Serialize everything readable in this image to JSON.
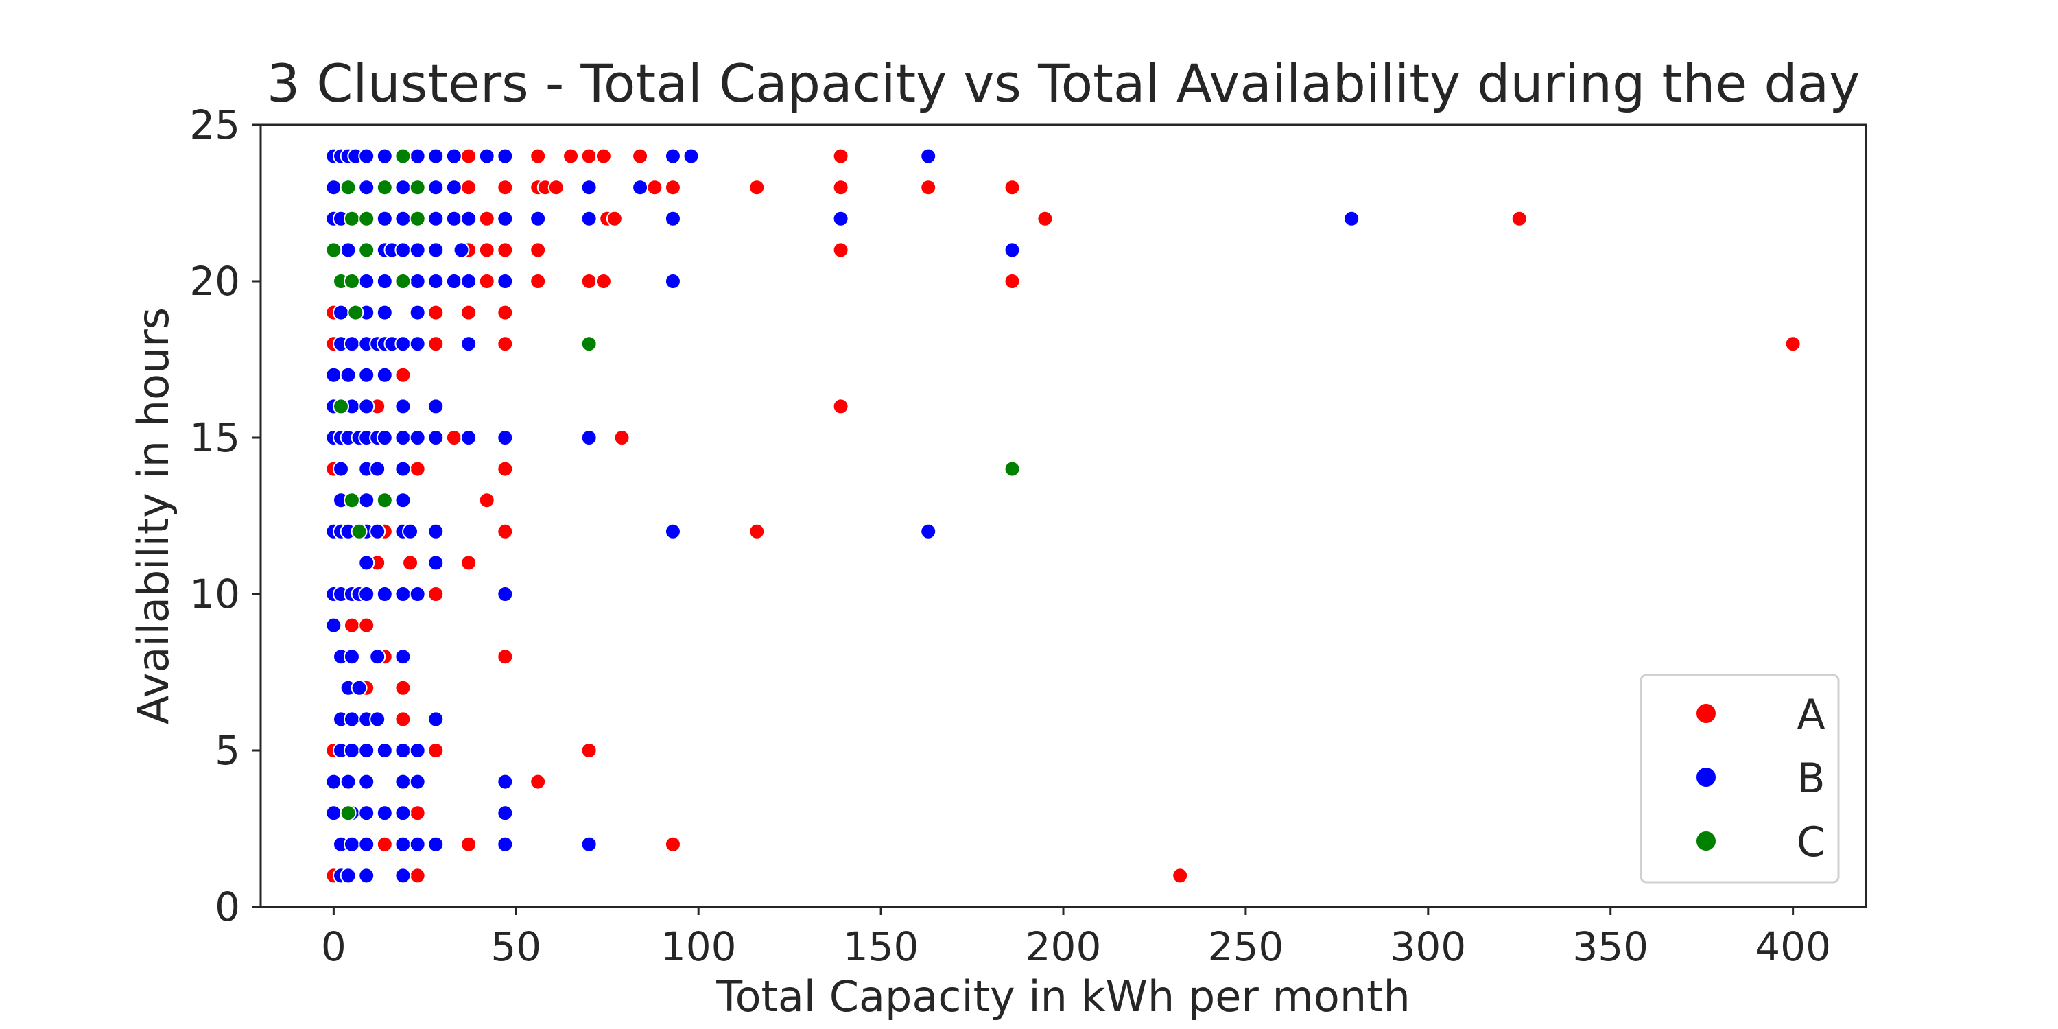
{
  "chart_data": {
    "type": "scatter",
    "title": "3 Clusters - Total Capacity  vs Total Availability during the day",
    "xlabel": "Total Capacity in kWh per month",
    "ylabel": "Availability in hours",
    "xlim": [
      -20,
      420
    ],
    "ylim": [
      0,
      25
    ],
    "xticks": [
      "0",
      "50",
      "100",
      "150",
      "200",
      "250",
      "300",
      "350",
      "400"
    ],
    "yticks": [
      "0",
      "5",
      "10",
      "15",
      "20",
      "25"
    ],
    "grid": false,
    "legend_position": "bottom-right",
    "series": [
      {
        "name": "A",
        "color": "#ff0000",
        "points": [
          [
            37,
            24
          ],
          [
            56,
            24
          ],
          [
            65,
            24
          ],
          [
            70,
            24
          ],
          [
            74,
            24
          ],
          [
            84,
            24
          ],
          [
            139,
            24
          ],
          [
            37,
            23
          ],
          [
            47,
            23
          ],
          [
            56,
            23
          ],
          [
            58,
            23
          ],
          [
            61,
            23
          ],
          [
            88,
            23
          ],
          [
            93,
            23
          ],
          [
            116,
            23
          ],
          [
            139,
            23
          ],
          [
            163,
            23
          ],
          [
            186,
            23
          ],
          [
            42,
            22
          ],
          [
            75,
            22
          ],
          [
            77,
            22
          ],
          [
            195,
            22
          ],
          [
            325,
            22
          ],
          [
            37,
            21
          ],
          [
            42,
            21
          ],
          [
            47,
            21
          ],
          [
            56,
            21
          ],
          [
            139,
            21
          ],
          [
            28,
            20
          ],
          [
            42,
            20
          ],
          [
            56,
            20
          ],
          [
            70,
            20
          ],
          [
            74,
            20
          ],
          [
            186,
            20
          ],
          [
            0,
            19
          ],
          [
            28,
            19
          ],
          [
            37,
            19
          ],
          [
            47,
            19
          ],
          [
            0,
            18
          ],
          [
            28,
            18
          ],
          [
            47,
            18
          ],
          [
            400,
            18
          ],
          [
            19,
            17
          ],
          [
            12,
            16
          ],
          [
            139,
            16
          ],
          [
            33,
            15
          ],
          [
            79,
            15
          ],
          [
            0,
            14
          ],
          [
            23,
            14
          ],
          [
            47,
            14
          ],
          [
            42,
            13
          ],
          [
            14,
            12
          ],
          [
            47,
            12
          ],
          [
            116,
            12
          ],
          [
            12,
            11
          ],
          [
            21,
            11
          ],
          [
            37,
            11
          ],
          [
            28,
            10
          ],
          [
            5,
            9
          ],
          [
            9,
            9
          ],
          [
            14,
            8
          ],
          [
            47,
            8
          ],
          [
            9,
            7
          ],
          [
            19,
            7
          ],
          [
            19,
            6
          ],
          [
            0,
            5
          ],
          [
            28,
            5
          ],
          [
            70,
            5
          ],
          [
            56,
            4
          ],
          [
            23,
            3
          ],
          [
            14,
            2
          ],
          [
            37,
            2
          ],
          [
            93,
            2
          ],
          [
            0,
            1
          ],
          [
            23,
            1
          ],
          [
            232,
            1
          ]
        ]
      },
      {
        "name": "B",
        "color": "#0000ff",
        "points": [
          [
            0,
            24
          ],
          [
            2,
            24
          ],
          [
            4,
            24
          ],
          [
            6,
            24
          ],
          [
            9,
            24
          ],
          [
            14,
            24
          ],
          [
            23,
            24
          ],
          [
            28,
            24
          ],
          [
            33,
            24
          ],
          [
            42,
            24
          ],
          [
            47,
            24
          ],
          [
            93,
            24
          ],
          [
            98,
            24
          ],
          [
            163,
            24
          ],
          [
            0,
            23
          ],
          [
            9,
            23
          ],
          [
            14,
            23
          ],
          [
            19,
            23
          ],
          [
            28,
            23
          ],
          [
            33,
            23
          ],
          [
            70,
            23
          ],
          [
            84,
            23
          ],
          [
            0,
            22
          ],
          [
            2,
            22
          ],
          [
            9,
            22
          ],
          [
            14,
            22
          ],
          [
            19,
            22
          ],
          [
            28,
            22
          ],
          [
            33,
            22
          ],
          [
            37,
            22
          ],
          [
            47,
            22
          ],
          [
            56,
            22
          ],
          [
            70,
            22
          ],
          [
            93,
            22
          ],
          [
            139,
            22
          ],
          [
            279,
            22
          ],
          [
            4,
            21
          ],
          [
            9,
            21
          ],
          [
            14,
            21
          ],
          [
            16,
            21
          ],
          [
            19,
            21
          ],
          [
            23,
            21
          ],
          [
            28,
            21
          ],
          [
            35,
            21
          ],
          [
            186,
            21
          ],
          [
            2,
            20
          ],
          [
            9,
            20
          ],
          [
            14,
            20
          ],
          [
            23,
            20
          ],
          [
            28,
            20
          ],
          [
            33,
            20
          ],
          [
            37,
            20
          ],
          [
            47,
            20
          ],
          [
            93,
            20
          ],
          [
            2,
            19
          ],
          [
            9,
            19
          ],
          [
            14,
            19
          ],
          [
            23,
            19
          ],
          [
            2,
            18
          ],
          [
            5,
            18
          ],
          [
            9,
            18
          ],
          [
            12,
            18
          ],
          [
            14,
            18
          ],
          [
            16,
            18
          ],
          [
            19,
            18
          ],
          [
            23,
            18
          ],
          [
            37,
            18
          ],
          [
            0,
            17
          ],
          [
            4,
            17
          ],
          [
            9,
            17
          ],
          [
            14,
            17
          ],
          [
            0,
            16
          ],
          [
            5,
            16
          ],
          [
            9,
            16
          ],
          [
            19,
            16
          ],
          [
            28,
            16
          ],
          [
            0,
            15
          ],
          [
            2,
            15
          ],
          [
            4,
            15
          ],
          [
            7,
            15
          ],
          [
            9,
            15
          ],
          [
            12,
            15
          ],
          [
            14,
            15
          ],
          [
            19,
            15
          ],
          [
            23,
            15
          ],
          [
            28,
            15
          ],
          [
            37,
            15
          ],
          [
            47,
            15
          ],
          [
            70,
            15
          ],
          [
            2,
            14
          ],
          [
            9,
            14
          ],
          [
            12,
            14
          ],
          [
            19,
            14
          ],
          [
            2,
            13
          ],
          [
            9,
            13
          ],
          [
            19,
            13
          ],
          [
            0,
            12
          ],
          [
            2,
            12
          ],
          [
            4,
            12
          ],
          [
            9,
            12
          ],
          [
            12,
            12
          ],
          [
            19,
            12
          ],
          [
            21,
            12
          ],
          [
            28,
            12
          ],
          [
            93,
            12
          ],
          [
            163,
            12
          ],
          [
            9,
            11
          ],
          [
            28,
            11
          ],
          [
            0,
            10
          ],
          [
            2,
            10
          ],
          [
            5,
            10
          ],
          [
            7,
            10
          ],
          [
            9,
            10
          ],
          [
            14,
            10
          ],
          [
            19,
            10
          ],
          [
            23,
            10
          ],
          [
            47,
            10
          ],
          [
            0,
            9
          ],
          [
            2,
            8
          ],
          [
            5,
            8
          ],
          [
            12,
            8
          ],
          [
            19,
            8
          ],
          [
            4,
            7
          ],
          [
            7,
            7
          ],
          [
            2,
            6
          ],
          [
            5,
            6
          ],
          [
            9,
            6
          ],
          [
            12,
            6
          ],
          [
            28,
            6
          ],
          [
            2,
            5
          ],
          [
            5,
            5
          ],
          [
            9,
            5
          ],
          [
            14,
            5
          ],
          [
            19,
            5
          ],
          [
            23,
            5
          ],
          [
            0,
            4
          ],
          [
            4,
            4
          ],
          [
            9,
            4
          ],
          [
            19,
            4
          ],
          [
            23,
            4
          ],
          [
            47,
            4
          ],
          [
            0,
            3
          ],
          [
            5,
            3
          ],
          [
            9,
            3
          ],
          [
            14,
            3
          ],
          [
            19,
            3
          ],
          [
            47,
            3
          ],
          [
            2,
            2
          ],
          [
            5,
            2
          ],
          [
            9,
            2
          ],
          [
            19,
            2
          ],
          [
            23,
            2
          ],
          [
            28,
            2
          ],
          [
            47,
            2
          ],
          [
            70,
            2
          ],
          [
            2,
            1
          ],
          [
            4,
            1
          ],
          [
            9,
            1
          ],
          [
            19,
            1
          ]
        ]
      },
      {
        "name": "C",
        "color": "#008000",
        "points": [
          [
            19,
            24
          ],
          [
            4,
            23
          ],
          [
            14,
            23
          ],
          [
            23,
            23
          ],
          [
            5,
            22
          ],
          [
            9,
            22
          ],
          [
            23,
            22
          ],
          [
            0,
            21
          ],
          [
            9,
            21
          ],
          [
            2,
            20
          ],
          [
            5,
            20
          ],
          [
            19,
            20
          ],
          [
            6,
            19
          ],
          [
            70,
            18
          ],
          [
            2,
            16
          ],
          [
            186,
            14
          ],
          [
            5,
            13
          ],
          [
            14,
            13
          ],
          [
            7,
            12
          ],
          [
            4,
            3
          ]
        ]
      }
    ]
  }
}
